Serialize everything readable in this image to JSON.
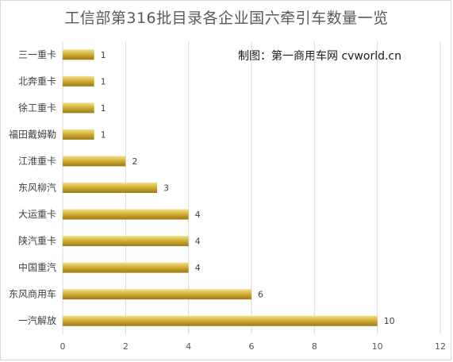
{
  "chart_data": {
    "type": "bar",
    "orientation": "horizontal",
    "title": "工信部第316批目录各企业国六牵引车数量一览",
    "watermark": "制图：第一商用车网 cvworld.cn",
    "categories": [
      "三一重卡",
      "北奔重卡",
      "徐工重卡",
      "福田戴姆勒",
      "江淮重卡",
      "东风柳汽",
      "大运重卡",
      "陕汽重卡",
      "中国重汽",
      "东风商用车",
      "一汽解放"
    ],
    "values": [
      1,
      1,
      1,
      1,
      2,
      3,
      4,
      4,
      4,
      6,
      10
    ],
    "xlim": [
      0,
      12
    ],
    "xticks": [
      0,
      2,
      4,
      6,
      8,
      10,
      12
    ],
    "grid": true,
    "legend": "none",
    "bar_color_light": "#f5e08a",
    "bar_color_mid": "#d4b039",
    "bar_color_dark": "#9c7a12"
  }
}
